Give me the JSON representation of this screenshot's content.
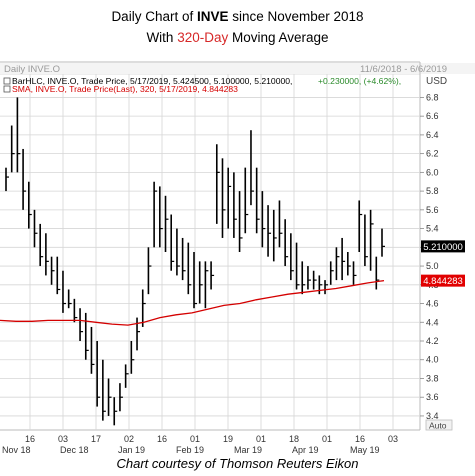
{
  "header": {
    "title_prefix": "Daily Chart of ",
    "title_ticker": "INVE",
    "title_suffix": " since November 2018",
    "subtitle_prefix": "With ",
    "subtitle_highlight": "320-Day",
    "subtitle_suffix": " Moving Average"
  },
  "chart_panel": {
    "name": "Daily INVE.O",
    "date_range": "11/6/2018 - 6/6/2019",
    "currency": "USD",
    "legend_bar": "BarHLC, INVE.O, Trade Price, 5/17/2019, 5.424500, 5.100000, 5.210000,",
    "legend_bar_change": "+0.230000, (+4.62%),",
    "legend_sma": "SMA, INVE.O, Trade Price(Last),  320,  5/17/2019,  4.844283",
    "last_price_label": "5.210000",
    "sma_label": "4.844283",
    "auto_label": "Auto",
    "colors": {
      "bars": "#000000",
      "sma": "#d40000",
      "grid": "#cfcfcf",
      "change": "#2a8a2a",
      "price_box": "#000000",
      "sma_box": "#e10000"
    }
  },
  "footer": {
    "credit": "Chart courtesy of Thomson Reuters Eikon"
  },
  "chart_data": {
    "type": "line",
    "title": "Daily Chart of INVE since November 2018",
    "subtitle": "With 320-Day Moving Average",
    "ylim": [
      3.25,
      7.05
    ],
    "ylabel": "USD",
    "yticks": [
      3.4,
      3.6,
      3.8,
      4.0,
      4.2,
      4.4,
      4.6,
      4.8,
      5.0,
      5.2,
      5.4,
      5.6,
      5.8,
      6.0,
      6.2,
      6.4,
      6.6,
      6.8
    ],
    "x_tick_labels": [
      "16",
      "03",
      "17",
      "02",
      "16",
      "01",
      "19",
      "01",
      "18",
      "01",
      "16",
      "03"
    ],
    "x_month_labels": [
      "Nov 18",
      "Dec 18",
      "Jan 19",
      "Feb 19",
      "Mar 19",
      "Apr 19",
      "May 19"
    ],
    "grid": true,
    "bar_series": {
      "name": "BarHLC, INVE.O, Trade Price",
      "high": [
        6.05,
        6.5,
        6.8,
        6.25,
        5.9,
        5.6,
        5.45,
        5.35,
        5.1,
        5.1,
        4.95,
        4.75,
        4.65,
        4.55,
        4.5,
        4.35,
        4.2,
        4.0,
        3.8,
        3.6,
        3.75,
        3.95,
        4.2,
        4.45,
        4.75,
        5.2,
        5.9,
        5.85,
        5.75,
        5.55,
        5.4,
        5.3,
        5.25,
        5.15,
        5.05,
        5.05,
        5.05,
        6.3,
        6.15,
        6.05,
        6.0,
        5.8,
        6.05,
        6.45,
        6.05,
        5.8,
        5.65,
        5.6,
        5.7,
        5.5,
        5.35,
        5.25,
        5.05,
        5.0,
        4.95,
        4.9,
        4.85,
        5.05,
        5.2,
        5.3,
        5.15,
        5.05,
        5.7,
        5.55,
        5.6,
        5.1,
        5.4
      ],
      "low": [
        5.8,
        6.0,
        6.0,
        5.6,
        5.4,
        5.2,
        5.0,
        4.9,
        4.8,
        4.7,
        4.5,
        4.55,
        4.4,
        4.2,
        4.0,
        3.85,
        3.5,
        3.35,
        3.4,
        3.3,
        3.45,
        3.7,
        3.85,
        4.1,
        4.35,
        4.7,
        5.2,
        5.2,
        5.15,
        4.95,
        4.9,
        4.85,
        4.7,
        4.55,
        4.6,
        4.55,
        4.75,
        5.45,
        5.3,
        5.4,
        5.3,
        5.15,
        5.35,
        5.65,
        5.35,
        5.2,
        5.1,
        5.05,
        5.2,
        5.0,
        4.85,
        4.75,
        4.7,
        4.75,
        4.75,
        4.7,
        4.7,
        4.8,
        4.85,
        4.85,
        4.9,
        4.8,
        5.15,
        5.0,
        4.95,
        4.75,
        5.1
      ],
      "close": [
        5.95,
        6.2,
        6.2,
        5.8,
        5.55,
        5.35,
        5.1,
        5.05,
        4.95,
        4.75,
        4.6,
        4.6,
        4.45,
        4.3,
        4.1,
        3.95,
        3.6,
        3.45,
        3.6,
        3.45,
        3.6,
        3.85,
        4.0,
        4.3,
        4.6,
        5.0,
        5.8,
        5.4,
        5.5,
        5.05,
        5.0,
        4.95,
        4.8,
        4.6,
        4.8,
        4.95,
        4.9,
        6.0,
        5.6,
        5.85,
        5.5,
        5.3,
        5.55,
        5.8,
        5.5,
        5.4,
        5.35,
        5.3,
        5.35,
        5.1,
        4.95,
        4.8,
        4.8,
        4.85,
        4.85,
        4.8,
        4.8,
        4.95,
        5.1,
        5.05,
        5.0,
        4.9,
        5.55,
        5.1,
        5.45,
        4.85,
        5.21
      ]
    },
    "sma_series": {
      "name": "SMA, INVE.O, Trade Price(Last), 320",
      "values": [
        4.42,
        4.41,
        4.41,
        4.42,
        4.42,
        4.42,
        4.4,
        4.38,
        4.37,
        4.4,
        4.45,
        4.48,
        4.5,
        4.54,
        4.58,
        4.6,
        4.64,
        4.67,
        4.7,
        4.72,
        4.74,
        4.76,
        4.79,
        4.82,
        4.844283
      ]
    }
  }
}
